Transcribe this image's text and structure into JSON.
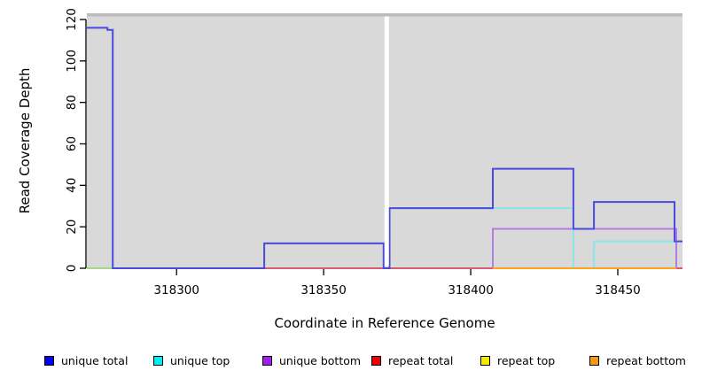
{
  "figure": {
    "background": "#ffffff",
    "plot_background": "#d9d9d9",
    "plot_top_edge_color": "#bcbcbc",
    "axis_color": "#000000",
    "text_color": "#000000",
    "no_data_gap_color": "#ffffff"
  },
  "chart_data": {
    "type": "line",
    "subtype": "step-coverage-plot",
    "title": "",
    "xlabel": "Coordinate in Reference Genome",
    "ylabel": "Read Coverage Depth",
    "xlim": [
      318269.5,
      318472
    ],
    "ylim": [
      0,
      123
    ],
    "x_ticks": [
      318300,
      318350,
      318400,
      318450
    ],
    "y_ticks": [
      0,
      20,
      40,
      60,
      80,
      100,
      120
    ],
    "grid": false,
    "legend_position": "bottom",
    "no_data_gap": {
      "x_start": 318370.7,
      "x_end": 318372.2
    },
    "series": [
      {
        "name": "unique total",
        "legend_color": "#0000ee",
        "line_color": "#4a4ae0",
        "points": [
          [
            318269.5,
            116
          ],
          [
            318276.5,
            116
          ],
          [
            318276.5,
            115
          ],
          [
            318278.3,
            115
          ],
          [
            318278.3,
            0
          ],
          [
            318329.8,
            0
          ],
          [
            318329.8,
            12
          ],
          [
            318370.4,
            12
          ],
          [
            318370.4,
            0
          ],
          [
            318372.4,
            0
          ],
          [
            318372.4,
            29
          ],
          [
            318407.5,
            29
          ],
          [
            318407.5,
            48
          ],
          [
            318434.9,
            48
          ],
          [
            318434.9,
            19
          ],
          [
            318441.9,
            19
          ],
          [
            318441.9,
            32
          ],
          [
            318469.3,
            32
          ],
          [
            318469.3,
            13
          ],
          [
            318472,
            13
          ]
        ]
      },
      {
        "name": "unique top",
        "legend_color": "#00eeee",
        "line_color": "#8ae4ec",
        "points": [
          [
            318329.8,
            0
          ],
          [
            318329.8,
            12
          ],
          [
            318370.4,
            12
          ],
          [
            318370.4,
            0
          ],
          [
            318372.4,
            0
          ],
          [
            318372.4,
            29
          ],
          [
            318434.9,
            29
          ],
          [
            318434.9,
            0
          ],
          [
            318441.9,
            0
          ],
          [
            318441.9,
            13
          ],
          [
            318472,
            13
          ]
        ]
      },
      {
        "name": "unique bottom",
        "legend_color": "#a020f0",
        "line_color": "#b27ce2",
        "points": [
          [
            318407.5,
            0
          ],
          [
            318407.5,
            19
          ],
          [
            318469.9,
            19
          ],
          [
            318469.9,
            0
          ]
        ]
      },
      {
        "name": "repeat total",
        "legend_color": "#ee0000",
        "line_color": "#d95c6c",
        "points": [
          [
            318269.5,
            0
          ],
          [
            318472,
            0
          ]
        ]
      },
      {
        "name": "repeat top",
        "legend_color": "#f2ea00",
        "line_color": "#e8e84a",
        "points": [
          [
            318269.5,
            0
          ],
          [
            318278.5,
            0
          ]
        ]
      },
      {
        "name": "repeat bottom",
        "legend_color": "#f59a14",
        "line_color": "#ffa21c",
        "points": [
          [
            318407.5,
            0
          ],
          [
            318469.9,
            0
          ]
        ]
      }
    ],
    "overlap_segment": {
      "color": "#a6d884",
      "points": [
        [
          318269.5,
          0
        ],
        [
          318278.5,
          0
        ]
      ],
      "note": "unique top + repeat top overlap rendered light green at depth 0"
    },
    "draw_order": [
      "repeat top",
      "repeat total",
      "unique bottom",
      "unique top",
      "__overlap__",
      "unique total",
      "repeat bottom"
    ]
  }
}
